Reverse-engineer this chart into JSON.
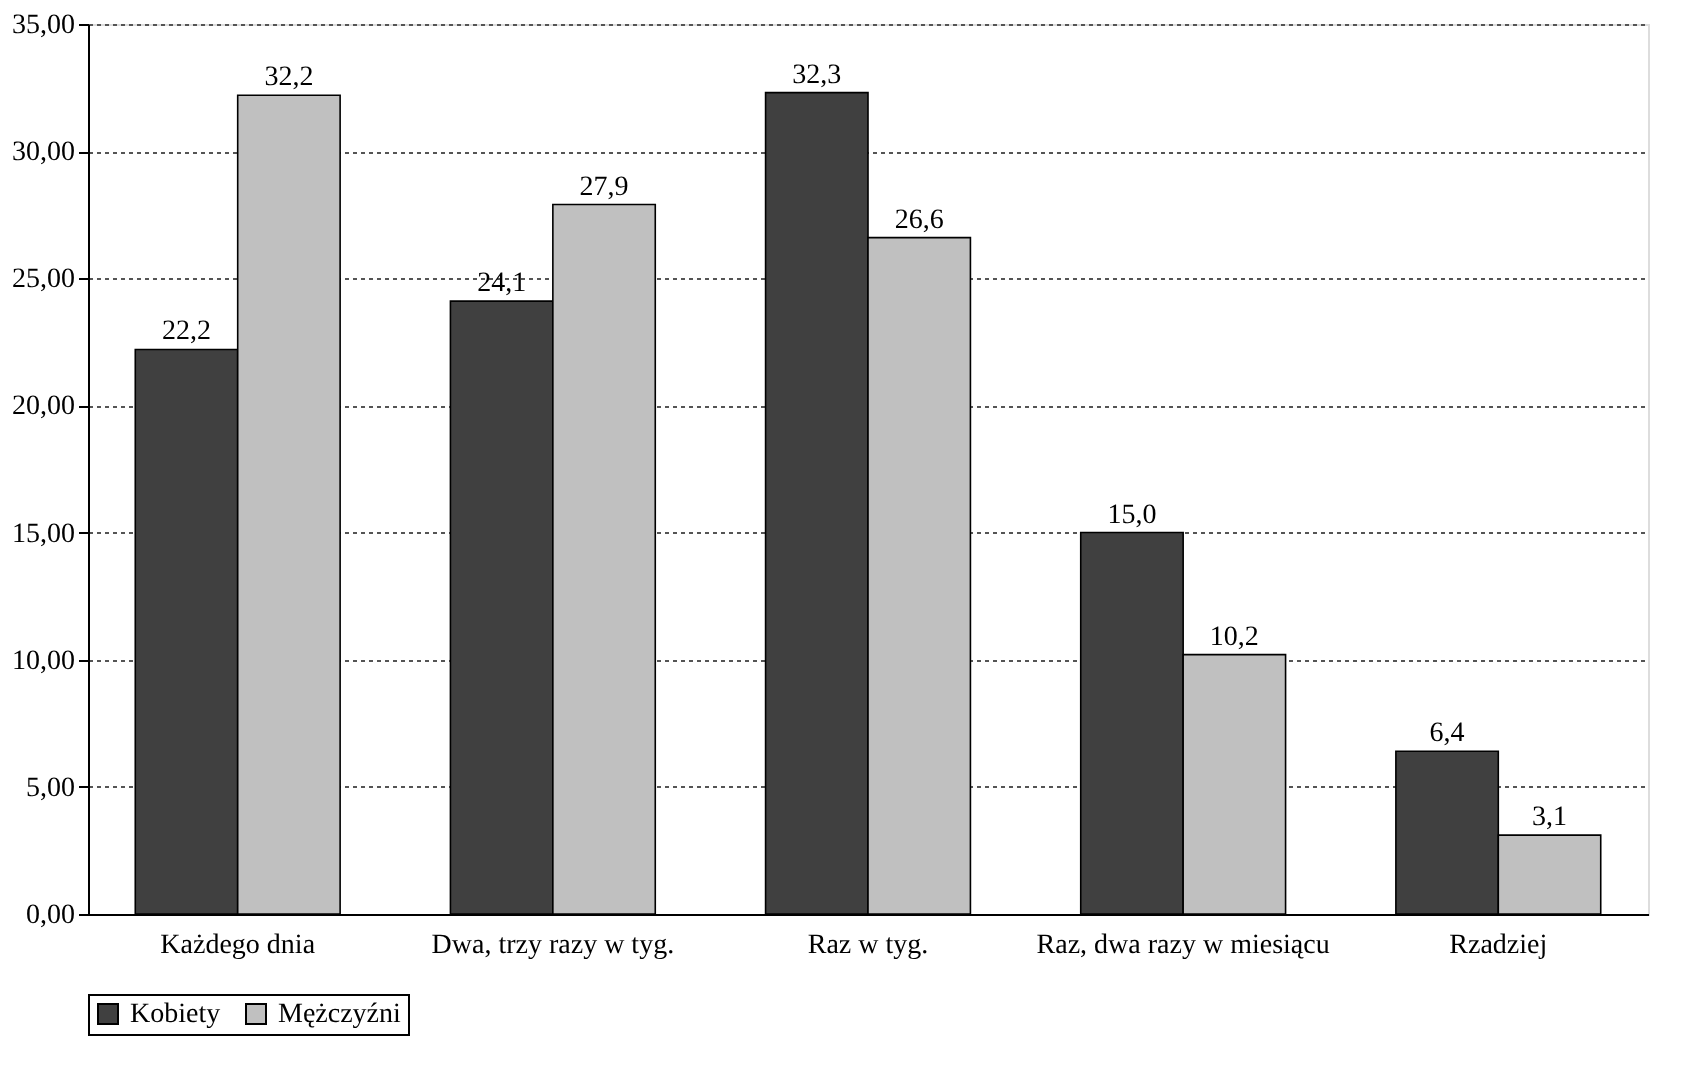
{
  "chart_data": {
    "type": "bar",
    "categories": [
      "Każdego dnia",
      "Dwa, trzy razy w tyg.",
      "Raz w tyg.",
      "Raz, dwa razy w miesiącu",
      "Rzadziej"
    ],
    "series": [
      {
        "name": "Kobiety",
        "color": "#404040",
        "values": [
          22.2,
          24.1,
          32.3,
          15.0,
          6.4
        ],
        "value_labels": [
          "22,2",
          "24,1",
          "32,3",
          "15,0",
          "6,4"
        ]
      },
      {
        "name": "Mężczyźni",
        "color": "#c0c0c0",
        "values": [
          32.2,
          27.9,
          26.6,
          10.2,
          3.1
        ],
        "value_labels": [
          "32,2",
          "27,9",
          "26,6",
          "10,2",
          "3,1"
        ]
      }
    ],
    "ylim": [
      0,
      35
    ],
    "yticks": [
      {
        "value": 0,
        "label": "0,00"
      },
      {
        "value": 5,
        "label": "5,00"
      },
      {
        "value": 10,
        "label": "10,00"
      },
      {
        "value": 15,
        "label": "15,00"
      },
      {
        "value": 20,
        "label": "20,00"
      },
      {
        "value": 25,
        "label": "25,00"
      },
      {
        "value": 30,
        "label": "30,00"
      },
      {
        "value": 35,
        "label": "35,00"
      }
    ],
    "grid": "y",
    "legend": "bottom"
  }
}
